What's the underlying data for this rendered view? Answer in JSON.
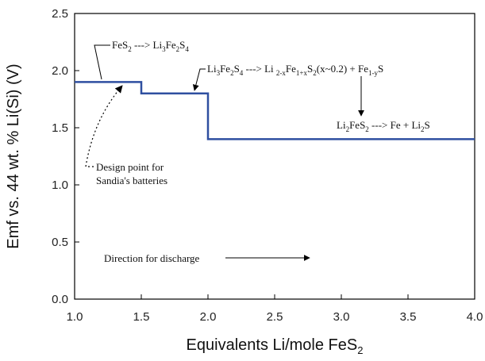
{
  "chart_data": {
    "type": "line",
    "xlabel": "Equivalents Li/mole FeS",
    "xlabel_sub": "2",
    "ylabel": "Emf  vs. 44 wt. % Li(Si) (V)",
    "xlim": [
      1.0,
      4.0
    ],
    "ylim": [
      0.0,
      2.5
    ],
    "xticks": [
      "1.0",
      "1.5",
      "2.0",
      "2.5",
      "3.0",
      "3.5",
      "4.0"
    ],
    "yticks": [
      "0.0",
      "0.5",
      "1.0",
      "1.5",
      "2.0",
      "2.5"
    ],
    "series": [
      {
        "color": "#2f4fa0",
        "points": [
          [
            1.0,
            1.9
          ],
          [
            1.5,
            1.9
          ],
          [
            1.5,
            1.8
          ],
          [
            2.0,
            1.8
          ],
          [
            2.0,
            1.4
          ],
          [
            4.0,
            1.4
          ]
        ]
      }
    ],
    "annotations": {
      "reaction1": {
        "parts": [
          [
            "FeS",
            "n"
          ],
          [
            "2",
            "sub"
          ],
          [
            " ---> Li",
            "n"
          ],
          [
            "3",
            "sub"
          ],
          [
            "Fe",
            "n"
          ],
          [
            "2",
            "sub"
          ],
          [
            "S",
            "n"
          ],
          [
            "4",
            "sub"
          ]
        ]
      },
      "reaction2": {
        "parts": [
          [
            "Li",
            "n"
          ],
          [
            "3",
            "sub"
          ],
          [
            "Fe",
            "n"
          ],
          [
            "2",
            "sub"
          ],
          [
            "S",
            "n"
          ],
          [
            "4",
            "sub"
          ],
          [
            " ---> Li ",
            "n"
          ],
          [
            "2-x",
            "sub"
          ],
          [
            "Fe",
            "n"
          ],
          [
            "1+x",
            "sub"
          ],
          [
            "S",
            "n"
          ],
          [
            "2",
            "sub"
          ],
          [
            "(x~0.2) + Fe",
            "n"
          ],
          [
            "1-y",
            "sub"
          ],
          [
            "S",
            "n"
          ]
        ]
      },
      "reaction3": {
        "parts": [
          [
            "Li",
            "n"
          ],
          [
            "2",
            "sub"
          ],
          [
            "FeS",
            "n"
          ],
          [
            "2",
            "sub"
          ],
          [
            " ---> Fe + Li",
            "n"
          ],
          [
            "2",
            "sub"
          ],
          [
            "S",
            "n"
          ]
        ]
      },
      "design_point": [
        "Design point for",
        "Sandia's batteries"
      ],
      "direction": "Direction for discharge"
    }
  }
}
